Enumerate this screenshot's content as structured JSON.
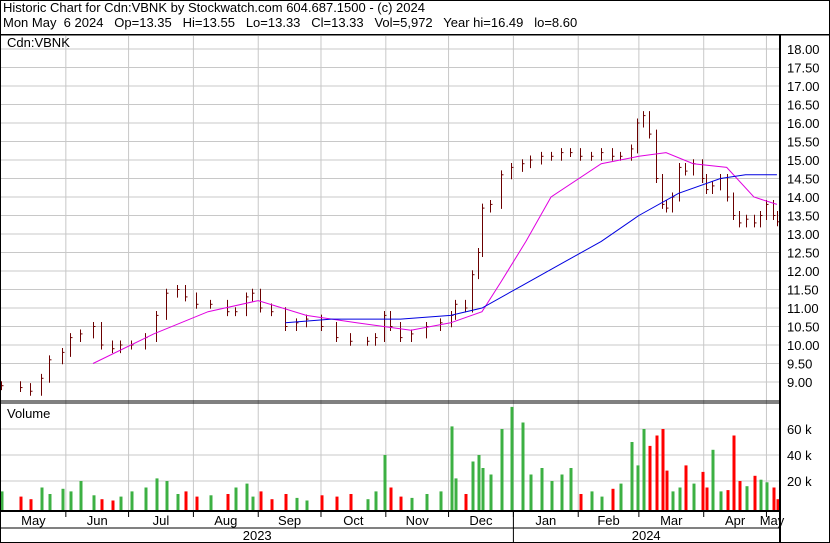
{
  "header": {
    "title": "Historic Chart for Cdn:VBNK by Stockwatch.com 604.687.1500 - (c) 2024",
    "quote": "Mon May  6 2024   Op=13.35   Hi=13.55   Lo=13.33   Cl=13.33   Vol=5,972   Year hi=16.49   lo=8.60"
  },
  "chart_data": [
    {
      "type": "ohlc-line",
      "symbol_label": "Cdn:VBNK",
      "ylim": [
        8.6,
        18.2
      ],
      "yticks": [
        "9.00",
        "9.50",
        "10.00",
        "10.50",
        "11.00",
        "11.50",
        "12.00",
        "12.50",
        "13.00",
        "13.50",
        "14.00",
        "14.50",
        "15.00",
        "15.50",
        "16.00",
        "16.50",
        "17.00",
        "17.50",
        "18.00"
      ],
      "grid": true,
      "colors": {
        "bars": "#6b0000",
        "ma_short": "#e000e0",
        "ma_long": "#0000e0"
      },
      "dates": [
        "2023-05-01",
        "2023-05-10",
        "2023-05-15",
        "2023-05-20",
        "2023-05-24",
        "2023-05-30",
        "2023-06-03",
        "2023-06-08",
        "2023-06-14",
        "2023-06-18",
        "2023-06-23",
        "2023-06-27",
        "2023-07-02",
        "2023-07-09",
        "2023-07-14",
        "2023-07-19",
        "2023-07-24",
        "2023-07-28",
        "2023-08-02",
        "2023-08-09",
        "2023-08-17",
        "2023-08-21",
        "2023-08-26",
        "2023-08-29",
        "2023-09-02",
        "2023-09-07",
        "2023-09-14",
        "2023-09-19",
        "2023-09-24",
        "2023-10-01",
        "2023-10-08",
        "2023-10-15",
        "2023-10-23",
        "2023-10-27",
        "2023-10-31",
        "2023-11-03",
        "2023-11-08",
        "2023-11-13",
        "2023-11-20",
        "2023-11-27",
        "2023-12-02",
        "2023-12-04",
        "2023-12-09",
        "2023-12-12",
        "2023-12-15",
        "2023-12-17",
        "2023-12-21",
        "2023-12-26",
        "2023-12-31",
        "2024-01-05",
        "2024-01-09",
        "2024-01-14",
        "2024-01-19",
        "2024-01-24",
        "2024-01-28",
        "2024-02-02",
        "2024-02-07",
        "2024-02-12",
        "2024-02-17",
        "2024-02-21",
        "2024-02-26",
        "2024-02-29",
        "2024-03-03",
        "2024-03-06",
        "2024-03-09",
        "2024-03-12",
        "2024-03-14",
        "2024-03-17",
        "2024-03-20",
        "2024-03-23",
        "2024-03-27",
        "2024-03-31",
        "2024-04-02",
        "2024-04-05",
        "2024-04-09",
        "2024-04-12",
        "2024-04-15",
        "2024-04-18",
        "2024-04-21",
        "2024-04-25",
        "2024-04-28",
        "2024-05-01",
        "2024-05-04",
        "2024-05-06"
      ],
      "close": [
        8.9,
        8.85,
        8.75,
        9.1,
        9.6,
        9.8,
        10.2,
        10.3,
        10.5,
        10.0,
        9.9,
        10.0,
        10.0,
        10.2,
        10.8,
        11.4,
        11.5,
        11.3,
        11.1,
        11.1,
        10.9,
        10.9,
        11.3,
        11.4,
        11.0,
        10.9,
        10.5,
        10.6,
        10.7,
        10.5,
        10.2,
        10.1,
        10.1,
        10.2,
        10.8,
        10.5,
        10.2,
        10.3,
        10.5,
        10.6,
        10.8,
        11.1,
        11.0,
        11.9,
        12.5,
        13.7,
        13.8,
        14.6,
        14.8,
        14.9,
        15.0,
        15.1,
        15.1,
        15.2,
        15.2,
        15.1,
        15.1,
        15.2,
        15.1,
        15.1,
        15.3,
        16.0,
        16.2,
        15.7,
        14.5,
        13.8,
        13.7,
        14.0,
        14.8,
        14.7,
        14.9,
        14.5,
        14.2,
        14.3,
        14.5,
        14.0,
        13.5,
        13.3,
        13.4,
        13.3,
        13.5,
        13.8,
        13.5,
        13.33
      ],
      "ma_short": {
        "dates": [
          "2023-06-14",
          "2023-07-13",
          "2023-08-08",
          "2023-09-01",
          "2023-09-24",
          "2023-10-18",
          "2023-11-13",
          "2023-12-02",
          "2023-12-17",
          "2023-12-26",
          "2024-01-07",
          "2024-01-19",
          "2024-02-12",
          "2024-03-01",
          "2024-03-14",
          "2024-03-27",
          "2024-04-12",
          "2024-04-25",
          "2024-05-06"
        ],
        "values": [
          9.5,
          10.3,
          10.9,
          11.2,
          10.8,
          10.6,
          10.4,
          10.6,
          10.9,
          11.7,
          12.8,
          14.0,
          14.9,
          15.1,
          15.2,
          14.9,
          14.8,
          14.0,
          13.8
        ]
      },
      "ma_long": {
        "dates": [
          "2023-09-14",
          "2023-10-06",
          "2023-11-08",
          "2023-12-02",
          "2023-12-17",
          "2024-01-05",
          "2024-01-24",
          "2024-02-12",
          "2024-03-01",
          "2024-03-20",
          "2024-04-09",
          "2024-04-21",
          "2024-05-06"
        ],
        "values": [
          10.6,
          10.7,
          10.7,
          10.8,
          11.0,
          11.6,
          12.2,
          12.8,
          13.5,
          14.1,
          14.5,
          14.6,
          14.6
        ]
      }
    },
    {
      "type": "bar",
      "label": "Volume",
      "ylim": [
        0,
        80000
      ],
      "yticks": [
        "20 k",
        "40 k",
        "60 k"
      ],
      "colors": {
        "up": "#3cb043",
        "down": "#ff0000"
      },
      "values": [
        12000,
        8000,
        6000,
        15000,
        10000,
        14000,
        12000,
        20000,
        9000,
        6000,
        5000,
        8000,
        12000,
        15000,
        22000,
        20000,
        10000,
        12000,
        8000,
        9000,
        10000,
        15000,
        18000,
        8000,
        12000,
        6000,
        10000,
        7000,
        5000,
        9000,
        8000,
        10000,
        6000,
        12000,
        40000,
        15000,
        8000,
        7000,
        10000,
        12000,
        62000,
        22000,
        10000,
        35000,
        40000,
        30000,
        25000,
        60000,
        77000,
        65000,
        25000,
        30000,
        20000,
        25000,
        30000,
        10000,
        12000,
        8000,
        14000,
        18000,
        50000,
        32000,
        60000,
        47000,
        55000,
        60000,
        28000,
        12000,
        15000,
        32000,
        18000,
        27000,
        15000,
        44000,
        12000,
        13000,
        55000,
        20000,
        16000,
        24000,
        21000,
        19000,
        15000,
        6000
      ],
      "months": [
        "May",
        "Jun",
        "Jul",
        "Aug",
        "Sep",
        "Oct",
        "Nov",
        "Dec",
        "Jan",
        "Feb",
        "Mar",
        "Apr",
        "May"
      ],
      "years": [
        "2023",
        "2024"
      ]
    }
  ]
}
